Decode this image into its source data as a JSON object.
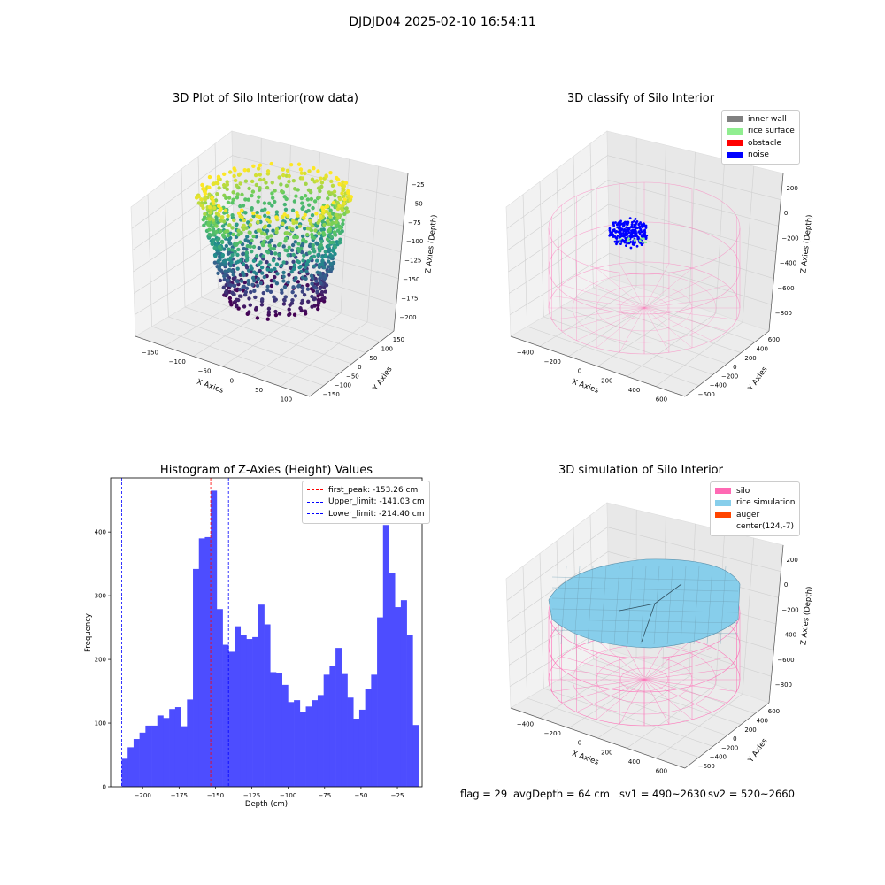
{
  "suptitle": "DJDJD04 2025-02-10 16:54:11",
  "colors": {
    "histogram_bar": "#4d4dff",
    "silo_mesh": "#ff69b4",
    "rice_simulation": "#87ceeb",
    "inner_wall": "#808080",
    "rice_surface": "#90ee90",
    "obstacle": "#ff0000",
    "noise": "#0000ff",
    "auger": "#ff4500"
  },
  "panels": {
    "raw": {
      "title": "3D Plot of Silo Interior(row data)",
      "xlabel": "X Axies",
      "ylabel": "Y Axies",
      "zlabel": "Z Axies (Depth)",
      "xticks": [
        "−150",
        "−100",
        "−50",
        "0",
        "50",
        "100"
      ],
      "yticks": [
        "−150",
        "−100",
        "−50",
        "0",
        "50",
        "100",
        "150"
      ],
      "zticks": [
        "−25",
        "−50",
        "−75",
        "−100",
        "−125",
        "−150",
        "−175",
        "−200"
      ]
    },
    "classify": {
      "title": "3D classify of Silo Interior",
      "xlabel": "X Axies",
      "ylabel": "Y Axies",
      "zlabel": "Z Axies (Depth)",
      "xticks": [
        "−400",
        "−200",
        "0",
        "200",
        "400",
        "600"
      ],
      "yticks": [
        "−600",
        "−400",
        "−200",
        "0",
        "200",
        "400",
        "600"
      ],
      "zticks": [
        "200",
        "0",
        "−200",
        "−400",
        "−600",
        "−800"
      ],
      "legend": [
        {
          "label": "inner wall",
          "color": "#808080"
        },
        {
          "label": "rice surface",
          "color": "#90ee90"
        },
        {
          "label": "obstacle",
          "color": "#ff0000"
        },
        {
          "label": "noise",
          "color": "#0000ff"
        }
      ]
    },
    "simulation": {
      "title": "3D simulation of Silo Interior",
      "xlabel": "X Axies",
      "ylabel": "Y Axies",
      "zlabel": "Z Axies (Depth)",
      "xticks": [
        "−400",
        "−200",
        "0",
        "200",
        "400",
        "600"
      ],
      "yticks": [
        "−600",
        "−400",
        "−200",
        "0",
        "200",
        "400",
        "600"
      ],
      "zticks": [
        "200",
        "0",
        "−200",
        "−400",
        "−600",
        "−800"
      ],
      "legend": [
        {
          "label": "silo",
          "color": "#ff69b4"
        },
        {
          "label": "rice simulation",
          "color": "#87ceeb"
        },
        {
          "label": "auger",
          "color": "#ff4500"
        },
        {
          "label": "center(124,-7)",
          "color": ""
        }
      ]
    }
  },
  "footer": {
    "flag": "flag = 29",
    "avg_depth": "avgDepth = 64 cm",
    "sv1": "sv1 = 490~2630",
    "sv2": "sv2 = 520~2660"
  },
  "chart_data": {
    "type": "bar",
    "title": "Histogram of Z-Axies (Height) Values",
    "xlabel": "Depth (cm)",
    "ylabel": "Frequency",
    "xlim": [
      -222,
      -8
    ],
    "ylim": [
      0,
      485
    ],
    "xticks": [
      -200,
      -175,
      -150,
      -125,
      -100,
      -75,
      -50,
      -25
    ],
    "yticks": [
      0,
      100,
      200,
      300,
      400
    ],
    "bin_start": -214.4,
    "bin_width": 4.08,
    "counts": [
      44,
      62,
      75,
      85,
      96,
      96,
      112,
      108,
      122,
      125,
      95,
      137,
      342,
      390,
      392,
      465,
      279,
      223,
      212,
      252,
      238,
      232,
      235,
      286,
      255,
      180,
      178,
      160,
      133,
      136,
      118,
      126,
      136,
      144,
      176,
      190,
      218,
      177,
      140,
      107,
      121,
      154,
      176,
      266,
      411,
      335,
      282,
      293,
      239,
      97
    ],
    "lines": [
      {
        "label": "first_peak: -153.26 cm",
        "x": -153.26,
        "color": "#ff0000"
      },
      {
        "label": "Upper_limit: -141.03 cm",
        "x": -141.03,
        "color": "#0000ff"
      },
      {
        "label": "Lower_limit: -214.40 cm",
        "x": -214.4,
        "color": "#0000ff"
      }
    ]
  }
}
